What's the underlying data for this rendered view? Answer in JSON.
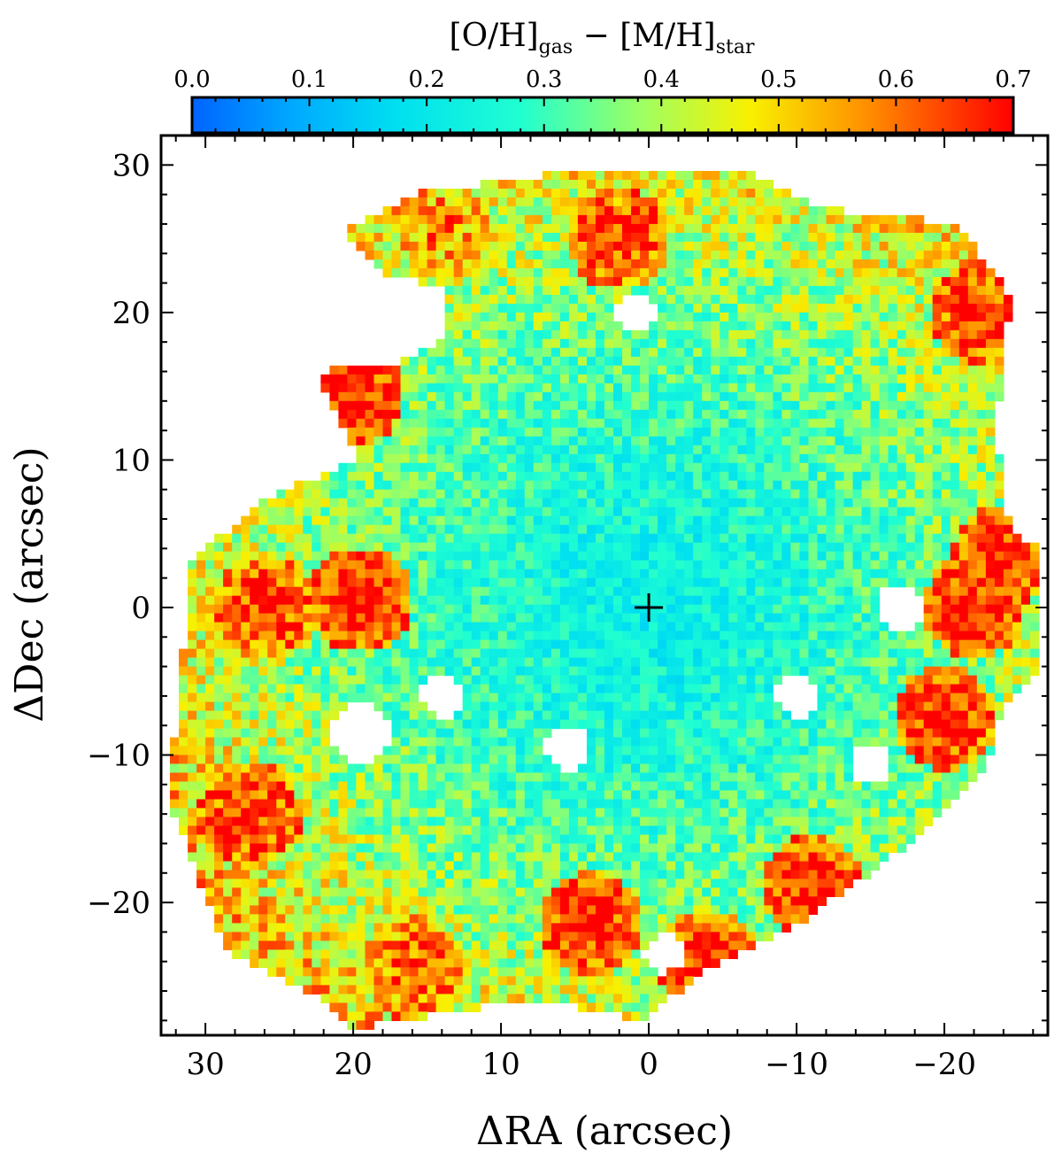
{
  "chart_data": {
    "type": "heatmap",
    "xlabel": "ΔRA (arcsec)",
    "ylabel": "ΔDec (arcsec)",
    "xlim": [
      33,
      -27
    ],
    "ylim": [
      -29,
      32
    ],
    "x_reversed": true,
    "x_ticks": [
      30,
      20,
      10,
      0,
      -10,
      -20
    ],
    "x_tick_labels": [
      "30",
      "20",
      "10",
      "0",
      "−10",
      "−20"
    ],
    "y_ticks": [
      30,
      20,
      10,
      0,
      -10,
      -20
    ],
    "y_tick_labels": [
      "30",
      "20",
      "10",
      "0",
      "−10",
      "−20"
    ],
    "colorbar": {
      "title_main_1": "[O/H]",
      "title_sub_1": "gas",
      "title_main_2": " − [M/H]",
      "title_sub_2": "star",
      "range": [
        0.0,
        0.7
      ],
      "ticks": [
        0.0,
        0.1,
        0.2,
        0.3,
        0.4,
        0.5,
        0.6,
        0.7
      ],
      "tick_labels": [
        "0.0",
        "0.1",
        "0.2",
        "0.3",
        "0.4",
        "0.5",
        "0.6",
        "0.7"
      ],
      "colormap": "jet"
    },
    "center_marker": {
      "x": 0,
      "y": 0,
      "symbol": "+"
    },
    "map_model": {
      "description_values": "radial gradient from ~0.2 at centre to ~0.5-0.7 at outer edge",
      "center_value": 0.22,
      "edge_value": 0.55,
      "outline": [
        [
          13.5,
          21.5
        ],
        [
          17.5,
          22.5
        ],
        [
          20.5,
          25.5
        ],
        [
          16.0,
          28.0
        ],
        [
          6.0,
          29.5
        ],
        [
          -6.5,
          29.5
        ],
        [
          -12.0,
          27.0
        ],
        [
          -21.0,
          26.0
        ],
        [
          -24.5,
          21.0
        ],
        [
          -23.5,
          12.0
        ],
        [
          -24.5,
          5.0
        ],
        [
          -26.5,
          4.0
        ],
        [
          -26.5,
          -4.5
        ],
        [
          -24.0,
          -6.5
        ],
        [
          -23.0,
          -10.5
        ],
        [
          -20.5,
          -13.0
        ],
        [
          -17.0,
          -16.5
        ],
        [
          -10.0,
          -21.5
        ],
        [
          -4.0,
          -24.5
        ],
        [
          0.5,
          -28.0
        ],
        [
          8.0,
          -26.5
        ],
        [
          14.0,
          -27.5
        ],
        [
          20.0,
          -28.5
        ],
        [
          23.0,
          -26.0
        ],
        [
          28.5,
          -23.5
        ],
        [
          31.0,
          -17.0
        ],
        [
          32.5,
          -13.0
        ],
        [
          31.5,
          -3.0
        ],
        [
          31.0,
          3.0
        ],
        [
          26.0,
          7.5
        ],
        [
          19.5,
          10.0
        ],
        [
          21.0,
          13.0
        ],
        [
          22.5,
          16.0
        ],
        [
          17.5,
          16.5
        ],
        [
          14.0,
          18.0
        ]
      ],
      "holes": [
        {
          "x": 1,
          "y": 20,
          "r": 1.4
        },
        {
          "x": -17,
          "y": 0,
          "r": 1.6
        },
        {
          "x": -10,
          "y": -6,
          "r": 1.4
        },
        {
          "x": 14,
          "y": -6,
          "r": 1.4
        },
        {
          "x": 19.5,
          "y": -8.5,
          "r": 2.0
        },
        {
          "x": 5.5,
          "y": -9.5,
          "r": 1.6
        },
        {
          "x": -15,
          "y": -10.5,
          "r": 1.4
        },
        {
          "x": -5.5,
          "y": -25.5,
          "r": 1.5
        },
        {
          "x": -1,
          "y": -23.5,
          "r": 1.3
        }
      ],
      "hot_spots": [
        {
          "x": 20,
          "y": 14.5,
          "value": 0.7
        },
        {
          "x": 19.5,
          "y": 0.5,
          "value": 0.7
        },
        {
          "x": 26,
          "y": 0,
          "value": 0.68
        },
        {
          "x": -22,
          "y": 0,
          "value": 0.7
        },
        {
          "x": -24,
          "y": 3.5,
          "value": 0.7
        },
        {
          "x": -20,
          "y": -7.5,
          "value": 0.7
        },
        {
          "x": -11,
          "y": -19,
          "value": 0.7
        },
        {
          "x": -4,
          "y": -24,
          "value": 0.7
        },
        {
          "x": 4,
          "y": -21.5,
          "value": 0.7
        },
        {
          "x": 16,
          "y": -24.5,
          "value": 0.65
        },
        {
          "x": 27,
          "y": -14,
          "value": 0.7
        },
        {
          "x": -22.5,
          "y": 20,
          "value": 0.7
        },
        {
          "x": 2,
          "y": 25,
          "value": 0.68
        },
        {
          "x": 14,
          "y": 26,
          "value": 0.6
        }
      ]
    }
  }
}
